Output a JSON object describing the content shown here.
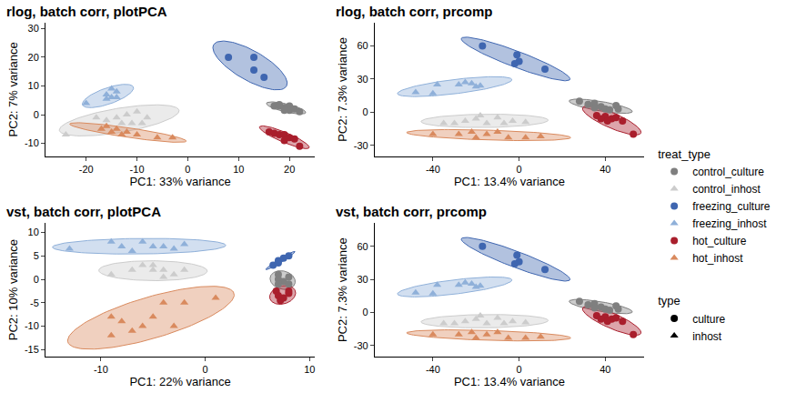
{
  "chart_data": [
    {
      "type": "scatter",
      "title": "rlog, batch corr, plotPCA",
      "x_label": "PC1: 33% variance",
      "y_label": "PC2: 7% variance",
      "xlim": [
        -28,
        25
      ],
      "ylim": [
        -14.5,
        32
      ],
      "xticks": [
        -20,
        -10,
        0,
        10,
        20
      ],
      "yticks": [
        -10,
        0,
        10,
        20,
        30
      ],
      "series": [
        {
          "name": "control_culture",
          "color": "#7f7f7f",
          "marker": "circle",
          "x": [
            17,
            18,
            19,
            20,
            20,
            21,
            22,
            19,
            18
          ],
          "y": [
            3,
            3,
            2.5,
            3,
            1.5,
            2,
            1,
            1.5,
            3.5
          ]
        },
        {
          "name": "control_inhost",
          "color": "#cccccc",
          "marker": "triangle",
          "x": [
            -24,
            -18,
            -16,
            -14,
            -13,
            -12,
            -11,
            -10,
            -9,
            -8
          ],
          "y": [
            -7,
            -1,
            -2,
            -1,
            -3,
            0,
            -3,
            1,
            -3,
            -1
          ]
        },
        {
          "name": "freezing_culture",
          "color": "#3f66b0",
          "marker": "circle",
          "x": [
            8,
            13,
            13,
            15
          ],
          "y": [
            20,
            20,
            15.5,
            13
          ]
        },
        {
          "name": "freezing_inhost",
          "color": "#8fb0d9",
          "marker": "triangle",
          "x": [
            -20,
            -16,
            -15,
            -15,
            -14,
            -16,
            -14
          ],
          "y": [
            4,
            7,
            9,
            6,
            8,
            5.5,
            6
          ]
        },
        {
          "name": "hot_culture",
          "color": "#a91e2c",
          "marker": "circle",
          "x": [
            16,
            17,
            18,
            19,
            20,
            21,
            22,
            19
          ],
          "y": [
            -6,
            -6.5,
            -7,
            -7,
            -8,
            -8.5,
            -11,
            -9
          ]
        },
        {
          "name": "hot_inhost",
          "color": "#d98a5e",
          "marker": "triangle",
          "x": [
            -17,
            -16,
            -15,
            -13,
            -12,
            -10,
            -6,
            -3,
            -14
          ],
          "y": [
            -5,
            -4,
            -6,
            -7,
            -6,
            -7,
            -8,
            -8,
            -5
          ]
        }
      ]
    },
    {
      "type": "scatter",
      "title": "rlog, batch corr, prcomp",
      "x_label": "PC1: 13.4% variance",
      "y_label": "PC2: 7.3% variance",
      "xlim": [
        -67,
        58
      ],
      "ylim": [
        -40,
        81
      ],
      "xticks": [
        -40,
        0,
        40
      ],
      "yticks": [
        -30,
        0,
        30,
        60
      ],
      "series": [
        {
          "name": "control_culture",
          "color": "#7f7f7f",
          "marker": "circle",
          "x": [
            28,
            32,
            35,
            38,
            40,
            45,
            46,
            42,
            35
          ],
          "y": [
            10,
            7,
            8,
            5,
            3,
            6,
            3,
            2,
            4
          ]
        },
        {
          "name": "control_inhost",
          "color": "#cccccc",
          "marker": "triangle",
          "x": [
            -35,
            -30,
            -25,
            -20,
            -15,
            -10,
            -7,
            -3,
            3,
            -18
          ],
          "y": [
            -10,
            -10,
            -8,
            -6,
            -10,
            -5,
            -10,
            -8,
            -9,
            -3
          ]
        },
        {
          "name": "freezing_culture",
          "color": "#3f66b0",
          "marker": "circle",
          "x": [
            -17,
            -1,
            0,
            12,
            -2
          ],
          "y": [
            60,
            52,
            46,
            39,
            44
          ]
        },
        {
          "name": "freezing_inhost",
          "color": "#8fb0d9",
          "marker": "triangle",
          "x": [
            -48,
            -38,
            -28,
            -25,
            -22,
            -20,
            -18,
            -40
          ],
          "y": [
            18,
            25,
            25,
            27,
            26,
            23,
            24,
            17
          ]
        },
        {
          "name": "hot_culture",
          "color": "#a91e2c",
          "marker": "circle",
          "x": [
            36,
            40,
            43,
            48,
            53,
            38,
            45,
            41
          ],
          "y": [
            -3,
            -4,
            -6,
            -8,
            -20,
            -6,
            -5,
            -8
          ]
        },
        {
          "name": "hot_inhost",
          "color": "#d98a5e",
          "marker": "triangle",
          "x": [
            -40,
            -28,
            -20,
            -15,
            -10,
            -5,
            3,
            -22,
            10
          ],
          "y": [
            -20,
            -20,
            -23,
            -20,
            -18,
            -23,
            -23,
            -18,
            -22
          ]
        }
      ]
    },
    {
      "type": "scatter",
      "title": "vst, batch corr, plotPCA",
      "x_label": "PC1: 22% variance",
      "y_label": "PC2: 10% variance",
      "xlim": [
        -15.3,
        10.5
      ],
      "ylim": [
        -16.5,
        12
      ],
      "xticks": [
        -10,
        0,
        10
      ],
      "yticks": [
        -15,
        -10,
        -5,
        0,
        5,
        10
      ],
      "series": [
        {
          "name": "control_culture",
          "color": "#7f7f7f",
          "marker": "circle",
          "x": [
            7,
            7,
            7.5,
            8,
            7,
            8
          ],
          "y": [
            1,
            0,
            -0.5,
            0.5,
            -1,
            -1
          ]
        },
        {
          "name": "control_inhost",
          "color": "#cccccc",
          "marker": "triangle",
          "x": [
            -9,
            -7,
            -6,
            -5,
            -4,
            -3,
            -2,
            -5,
            -4
          ],
          "y": [
            1,
            2,
            3,
            2,
            2,
            1,
            2,
            3,
            0.5
          ]
        },
        {
          "name": "freezing_culture",
          "color": "#3f66b0",
          "marker": "circle",
          "x": [
            6.5,
            7,
            7.5,
            8,
            7
          ],
          "y": [
            3,
            4,
            4.5,
            5,
            3.5
          ]
        },
        {
          "name": "freezing_inhost",
          "color": "#8fb0d9",
          "marker": "triangle",
          "x": [
            -13,
            -9,
            -6,
            -8,
            -5,
            -4,
            -3,
            -2,
            -7
          ],
          "y": [
            6.5,
            8,
            8,
            7,
            7,
            7,
            6.5,
            7.5,
            6
          ]
        },
        {
          "name": "hot_culture",
          "color": "#a91e2c",
          "marker": "circle",
          "x": [
            6.8,
            7,
            7.5,
            8,
            7.2,
            8
          ],
          "y": [
            -2.5,
            -3.5,
            -4,
            -3,
            -4.5,
            -2.5
          ]
        },
        {
          "name": "hot_inhost",
          "color": "#d98a5e",
          "marker": "triangle",
          "x": [
            -9,
            -9,
            -8,
            -6,
            -5,
            -4,
            -3,
            -2,
            1,
            -7
          ],
          "y": [
            -12,
            -8,
            -9,
            -10,
            -8,
            -5,
            -10,
            -5,
            -4,
            -11
          ]
        }
      ]
    },
    {
      "type": "scatter",
      "title": "vst, batch corr, prcomp",
      "x_label": "PC1: 13.4% variance",
      "y_label": "PC2: 7.3% variance",
      "xlim": [
        -67,
        58
      ],
      "ylim": [
        -40,
        81
      ],
      "xticks": [
        -40,
        0,
        40
      ],
      "yticks": [
        -30,
        0,
        30,
        60
      ],
      "series": [
        {
          "name": "control_culture",
          "color": "#7f7f7f",
          "marker": "circle",
          "x": [
            28,
            32,
            35,
            38,
            40,
            45,
            46,
            42,
            35
          ],
          "y": [
            10,
            7,
            8,
            5,
            3,
            6,
            3,
            2,
            4
          ]
        },
        {
          "name": "control_inhost",
          "color": "#cccccc",
          "marker": "triangle",
          "x": [
            -35,
            -30,
            -25,
            -20,
            -15,
            -10,
            -7,
            -3,
            3,
            -18
          ],
          "y": [
            -10,
            -10,
            -8,
            -6,
            -10,
            -5,
            -10,
            -8,
            -9,
            -3
          ]
        },
        {
          "name": "freezing_culture",
          "color": "#3f66b0",
          "marker": "circle",
          "x": [
            -17,
            -1,
            0,
            12,
            -2
          ],
          "y": [
            60,
            52,
            46,
            39,
            44
          ]
        },
        {
          "name": "freezing_inhost",
          "color": "#8fb0d9",
          "marker": "triangle",
          "x": [
            -48,
            -38,
            -28,
            -25,
            -22,
            -20,
            -18,
            -40
          ],
          "y": [
            18,
            25,
            25,
            27,
            26,
            23,
            24,
            17
          ]
        },
        {
          "name": "hot_culture",
          "color": "#a91e2c",
          "marker": "circle",
          "x": [
            36,
            40,
            43,
            48,
            53,
            38,
            45,
            41
          ],
          "y": [
            -3,
            -4,
            -6,
            -8,
            -20,
            -6,
            -5,
            -8
          ]
        },
        {
          "name": "hot_inhost",
          "color": "#d98a5e",
          "marker": "triangle",
          "x": [
            -40,
            -28,
            -20,
            -15,
            -10,
            -5,
            3,
            -22,
            10
          ],
          "y": [
            -20,
            -20,
            -23,
            -20,
            -18,
            -23,
            -23,
            -18,
            -22
          ]
        }
      ]
    }
  ],
  "legends": [
    {
      "title": "treat_type"
    },
    {
      "title": "type",
      "series": [
        {
          "name": "culture",
          "marker": "circle"
        },
        {
          "name": "inhost",
          "marker": "triangle"
        }
      ]
    }
  ]
}
